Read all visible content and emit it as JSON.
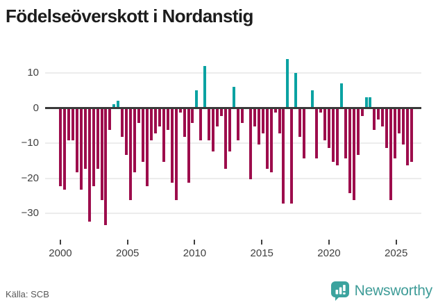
{
  "title": "Födelseöverskott i Nordanstig",
  "source": "Källa: SCB",
  "branding": {
    "logo_text": "Newsworthy",
    "logo_icon": "bar-chart-speech-bubble-icon"
  },
  "colors": {
    "positive": "#0aa2a2",
    "negative": "#9d0d4c",
    "axis": "#3a3a3a",
    "grid": "#ececec",
    "tick_text": "#3f3f3f",
    "title_text": "#1c1c1c",
    "source_text": "#575757",
    "logo": "#3f9c98",
    "logo_icon_bg": "#3ba39e"
  },
  "chart_data": {
    "type": "bar",
    "title": "Födelseöverskott i Nordanstig",
    "xlabel": "",
    "ylabel": "",
    "x_start_year": 2000,
    "x_end_year": 2025.6,
    "bars_per_year": 3.25,
    "x_tick_labels": [
      "2000",
      "2005",
      "2010",
      "2015",
      "2020",
      "2025"
    ],
    "x_tick_years": [
      2000,
      2005,
      2010,
      2015,
      2020,
      2025
    ],
    "y_ticks": [
      10,
      0,
      -10,
      -20,
      -30
    ],
    "y_tick_labels": [
      "10",
      "0",
      "−10",
      "−20",
      "−30"
    ],
    "ylim": [
      -37,
      16
    ],
    "grid": true,
    "legend": "none",
    "values": [
      -22,
      -23,
      -9,
      -9,
      -18,
      -23,
      -17,
      -32,
      -22,
      -17,
      -26,
      -33,
      -6,
      1,
      2,
      -8,
      -13,
      -26,
      -18,
      -4,
      -15,
      -22,
      -9,
      -7,
      -5,
      -15,
      -6,
      -21,
      -26,
      -1,
      -8,
      -21,
      -4,
      5,
      -9,
      12,
      -9,
      -12,
      -5,
      -2,
      -17,
      -12,
      6,
      -9,
      -4,
      0,
      -20,
      -5,
      -10,
      -7,
      -17,
      -18,
      -1,
      -7,
      -27,
      14,
      -27,
      10,
      -8,
      -14,
      0,
      5,
      -14,
      -1,
      -9,
      -11,
      -15,
      -16,
      7,
      -14,
      -24,
      -26,
      -13,
      -2,
      3,
      3,
      -6,
      -3,
      -5,
      -11,
      -26,
      -14,
      -7,
      -10,
      -16,
      -15
    ]
  }
}
